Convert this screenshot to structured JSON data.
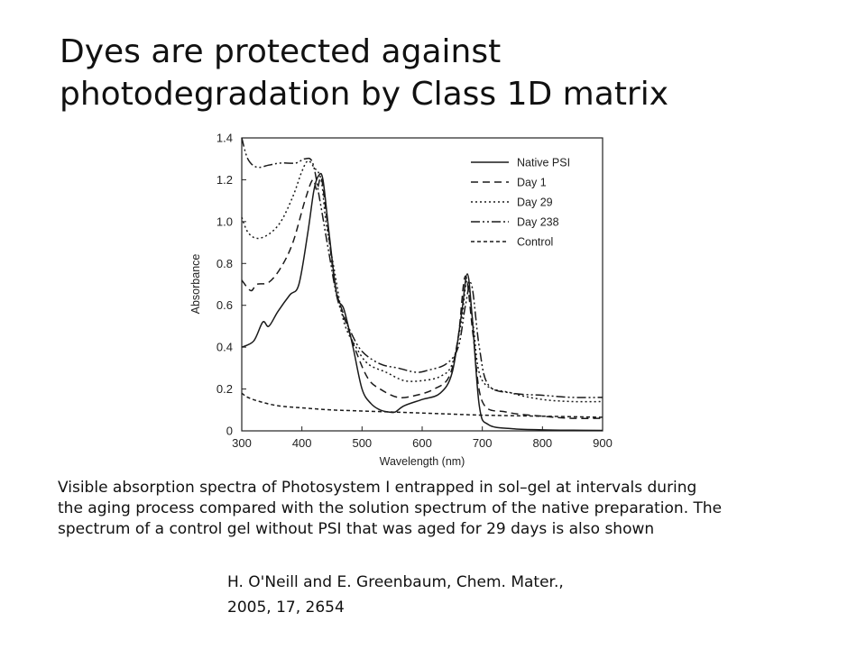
{
  "slide": {
    "title_line1": "Dyes are protected against",
    "title_line2": "photodegradation by Class 1D matrix",
    "caption_line1": "Visible absorption spectra of Photosystem I entrapped in sol–gel at intervals during",
    "caption_line2": "the aging process compared with the solution spectrum of the native preparation. The",
    "caption_line3": "spectrum of a control gel without PSI that was aged for 29 days is also shown",
    "citation_line1": "H. O'Neill and E. Greenbaum, Chem. Mater.,",
    "citation_line2": "2005, 17, 2654"
  },
  "chart_data": {
    "type": "line",
    "xlabel": "Wavelength (nm)",
    "ylabel": "Absorbance",
    "xlim": [
      300,
      900
    ],
    "ylim": [
      0,
      1.4
    ],
    "xticks": [
      "300",
      "400",
      "500",
      "600",
      "700",
      "800",
      "900"
    ],
    "yticks": [
      "0",
      "0.2",
      "0.4",
      "0.6",
      "0.8",
      "1.0",
      "1.2",
      "1.4"
    ],
    "xtick_values": [
      300,
      400,
      500,
      600,
      700,
      800,
      900
    ],
    "ytick_values": [
      0,
      0.2,
      0.4,
      0.6,
      0.8,
      1.0,
      1.2,
      1.4
    ],
    "grid": false,
    "legend_position": "top-right",
    "series": [
      {
        "name": "Native PSI",
        "dash": "solid",
        "points": [
          [
            300,
            0.4
          ],
          [
            320,
            0.43
          ],
          [
            335,
            0.52
          ],
          [
            345,
            0.5
          ],
          [
            360,
            0.57
          ],
          [
            380,
            0.65
          ],
          [
            395,
            0.7
          ],
          [
            410,
            0.95
          ],
          [
            420,
            1.15
          ],
          [
            428,
            1.22
          ],
          [
            435,
            1.2
          ],
          [
            445,
            0.95
          ],
          [
            458,
            0.65
          ],
          [
            470,
            0.58
          ],
          [
            485,
            0.4
          ],
          [
            500,
            0.2
          ],
          [
            515,
            0.13
          ],
          [
            530,
            0.1
          ],
          [
            545,
            0.09
          ],
          [
            555,
            0.09
          ],
          [
            570,
            0.12
          ],
          [
            600,
            0.15
          ],
          [
            630,
            0.18
          ],
          [
            650,
            0.28
          ],
          [
            665,
            0.55
          ],
          [
            675,
            0.75
          ],
          [
            683,
            0.55
          ],
          [
            695,
            0.12
          ],
          [
            710,
            0.03
          ],
          [
            750,
            0.01
          ],
          [
            800,
            0.005
          ],
          [
            850,
            0.003
          ],
          [
            900,
            0.002
          ]
        ]
      },
      {
        "name": "Day 1",
        "dash": "8,5",
        "points": [
          [
            300,
            0.72
          ],
          [
            315,
            0.67
          ],
          [
            325,
            0.7
          ],
          [
            345,
            0.71
          ],
          [
            365,
            0.78
          ],
          [
            385,
            0.9
          ],
          [
            405,
            1.1
          ],
          [
            418,
            1.2
          ],
          [
            425,
            1.15
          ],
          [
            432,
            1.21
          ],
          [
            440,
            1.05
          ],
          [
            455,
            0.7
          ],
          [
            470,
            0.55
          ],
          [
            490,
            0.38
          ],
          [
            510,
            0.25
          ],
          [
            530,
            0.2
          ],
          [
            560,
            0.16
          ],
          [
            590,
            0.17
          ],
          [
            620,
            0.2
          ],
          [
            645,
            0.26
          ],
          [
            660,
            0.45
          ],
          [
            672,
            0.74
          ],
          [
            685,
            0.45
          ],
          [
            700,
            0.14
          ],
          [
            740,
            0.09
          ],
          [
            800,
            0.07
          ],
          [
            850,
            0.06
          ],
          [
            900,
            0.06
          ]
        ]
      },
      {
        "name": "Day 29",
        "dash": "2,3",
        "points": [
          [
            300,
            1.02
          ],
          [
            310,
            0.95
          ],
          [
            325,
            0.92
          ],
          [
            345,
            0.94
          ],
          [
            365,
            1.0
          ],
          [
            385,
            1.12
          ],
          [
            400,
            1.24
          ],
          [
            410,
            1.29
          ],
          [
            420,
            1.26
          ],
          [
            432,
            1.2
          ],
          [
            440,
            1.0
          ],
          [
            455,
            0.75
          ],
          [
            470,
            0.52
          ],
          [
            490,
            0.4
          ],
          [
            510,
            0.32
          ],
          [
            540,
            0.28
          ],
          [
            570,
            0.24
          ],
          [
            600,
            0.24
          ],
          [
            630,
            0.26
          ],
          [
            650,
            0.32
          ],
          [
            665,
            0.52
          ],
          [
            675,
            0.72
          ],
          [
            685,
            0.5
          ],
          [
            700,
            0.24
          ],
          [
            750,
            0.18
          ],
          [
            800,
            0.15
          ],
          [
            850,
            0.14
          ],
          [
            900,
            0.14
          ]
        ]
      },
      {
        "name": "Day 238",
        "dash": "10,3,2,3,2,3",
        "points": [
          [
            300,
            1.4
          ],
          [
            310,
            1.3
          ],
          [
            325,
            1.26
          ],
          [
            345,
            1.27
          ],
          [
            365,
            1.28
          ],
          [
            390,
            1.28
          ],
          [
            405,
            1.3
          ],
          [
            418,
            1.28
          ],
          [
            430,
            1.1
          ],
          [
            445,
            0.85
          ],
          [
            460,
            0.62
          ],
          [
            480,
            0.48
          ],
          [
            500,
            0.38
          ],
          [
            530,
            0.32
          ],
          [
            560,
            0.3
          ],
          [
            590,
            0.28
          ],
          [
            610,
            0.29
          ],
          [
            640,
            0.32
          ],
          [
            660,
            0.4
          ],
          [
            672,
            0.6
          ],
          [
            682,
            0.7
          ],
          [
            695,
            0.4
          ],
          [
            710,
            0.22
          ],
          [
            750,
            0.18
          ],
          [
            800,
            0.17
          ],
          [
            850,
            0.16
          ],
          [
            900,
            0.16
          ]
        ]
      },
      {
        "name": "Control",
        "dash": "4,3",
        "points": [
          [
            300,
            0.18
          ],
          [
            310,
            0.16
          ],
          [
            330,
            0.14
          ],
          [
            360,
            0.12
          ],
          [
            400,
            0.11
          ],
          [
            450,
            0.1
          ],
          [
            500,
            0.095
          ],
          [
            550,
            0.09
          ],
          [
            600,
            0.085
          ],
          [
            650,
            0.08
          ],
          [
            700,
            0.075
          ],
          [
            800,
            0.07
          ],
          [
            900,
            0.065
          ]
        ]
      }
    ]
  }
}
